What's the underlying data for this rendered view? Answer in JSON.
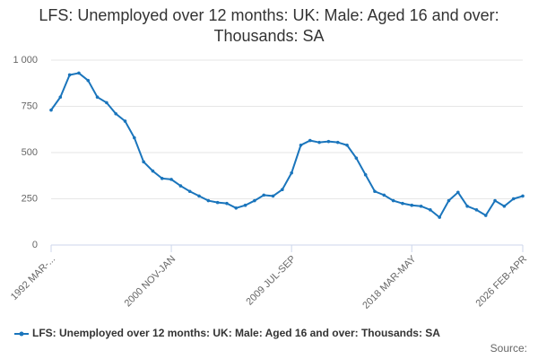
{
  "chart_data": {
    "type": "line",
    "title": "LFS: Unemployed over 12 months: UK: Male: Aged 16 and over: Thousands: SA",
    "categories": [
      "1992 MAR-...",
      null,
      null,
      null,
      null,
      null,
      null,
      null,
      null,
      null,
      null,
      null,
      null,
      "2000 NOV-JAN",
      null,
      null,
      null,
      null,
      null,
      null,
      null,
      null,
      null,
      null,
      null,
      null,
      "2009 JUL-SEP",
      null,
      null,
      null,
      null,
      null,
      null,
      null,
      null,
      null,
      null,
      null,
      null,
      "2018 MAR-MAY",
      null,
      null,
      null,
      null,
      null,
      null,
      null,
      null,
      null,
      null,
      null,
      "2026 FEB-APR"
    ],
    "series": [
      {
        "name": "LFS: Unemployed over 12 months: UK: Male: Aged 16 and over: Thousands: SA",
        "color": "#1a75bc",
        "values": [
          730,
          800,
          920,
          930,
          890,
          800,
          770,
          710,
          670,
          580,
          450,
          400,
          360,
          355,
          320,
          290,
          265,
          240,
          230,
          225,
          200,
          215,
          240,
          270,
          265,
          300,
          390,
          540,
          565,
          555,
          560,
          555,
          540,
          470,
          380,
          290,
          270,
          240,
          225,
          215,
          210,
          190,
          150,
          240,
          285,
          210,
          190,
          160,
          240,
          210,
          250,
          265
        ]
      }
    ],
    "ylim": [
      0,
      1000
    ],
    "yticks": [
      0,
      250,
      500,
      750,
      {
        "value": 1000,
        "label": "1 000"
      }
    ],
    "grid": true,
    "source": "Source:"
  }
}
